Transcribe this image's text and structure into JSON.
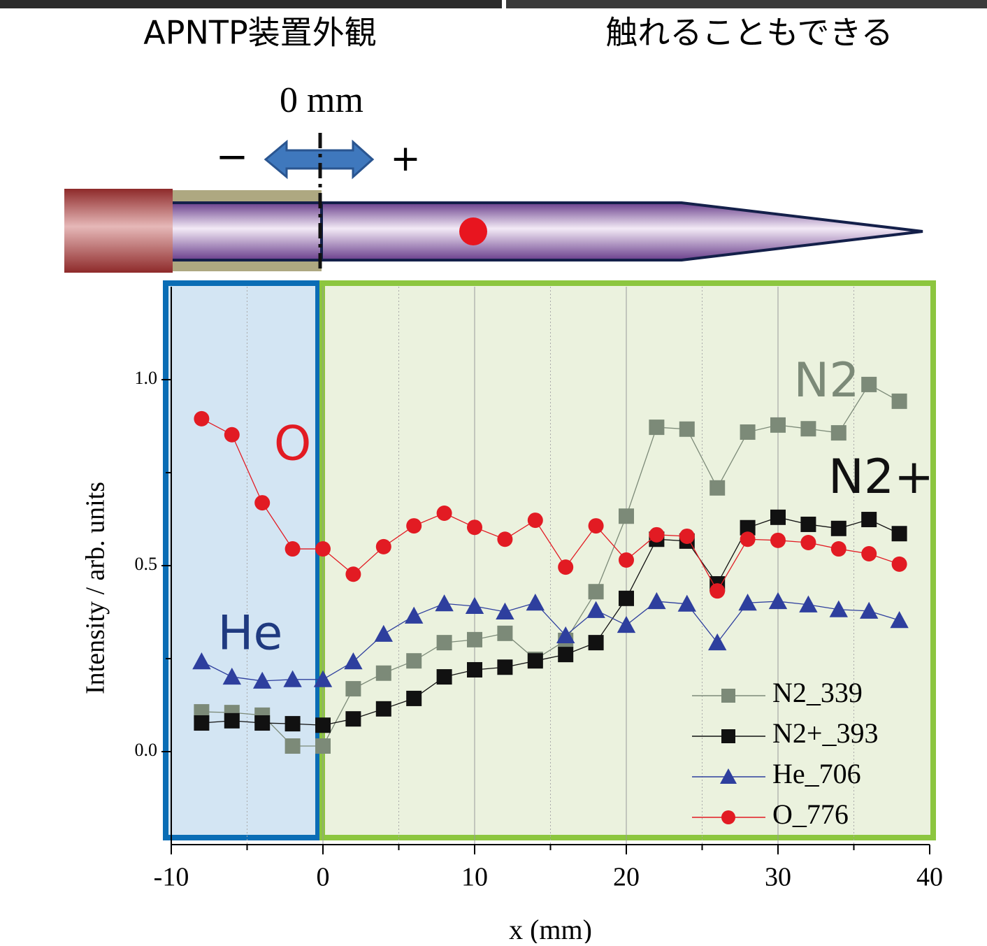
{
  "header": {
    "left_caption": "APNTP装置外観",
    "right_caption": "触れることもできる"
  },
  "diagram": {
    "origin_label": "0 mm",
    "minus": "−",
    "plus": "+"
  },
  "chart_data": {
    "type": "line",
    "x": [
      -8,
      -6,
      -4,
      -2,
      0,
      2,
      4,
      6,
      8,
      10,
      12,
      14,
      16,
      18,
      20,
      22,
      24,
      26,
      28,
      30,
      32,
      34,
      36,
      38
    ],
    "series": [
      {
        "name": "N2_339",
        "color": "#7c8a78",
        "marker": "square",
        "values": [
          0.107,
          0.105,
          0.098,
          0.015,
          0.015,
          0.169,
          0.211,
          0.244,
          0.293,
          0.301,
          0.318,
          0.248,
          0.299,
          0.43,
          0.633,
          0.872,
          0.867,
          0.709,
          0.859,
          0.878,
          0.868,
          0.857,
          0.987,
          0.942
        ]
      },
      {
        "name": "N2+_393",
        "color": "#111111",
        "marker": "square",
        "values": [
          0.077,
          0.083,
          0.077,
          0.075,
          0.071,
          0.088,
          0.115,
          0.143,
          0.201,
          0.22,
          0.227,
          0.244,
          0.261,
          0.293,
          0.412,
          0.571,
          0.566,
          0.451,
          0.602,
          0.63,
          0.611,
          0.6,
          0.624,
          0.586
        ]
      },
      {
        "name": "He_706",
        "color": "#2e3f9e",
        "marker": "triangle",
        "values": [
          0.242,
          0.201,
          0.19,
          0.194,
          0.194,
          0.242,
          0.316,
          0.365,
          0.398,
          0.391,
          0.376,
          0.4,
          0.312,
          0.38,
          0.34,
          0.404,
          0.397,
          0.293,
          0.4,
          0.404,
          0.395,
          0.382,
          0.378,
          0.353
        ]
      },
      {
        "name": "O_776",
        "color": "#e21b23",
        "marker": "circle",
        "values": [
          0.895,
          0.852,
          0.669,
          0.545,
          0.545,
          0.477,
          0.551,
          0.607,
          0.641,
          0.603,
          0.571,
          0.622,
          0.496,
          0.607,
          0.515,
          0.583,
          0.579,
          0.432,
          0.571,
          0.568,
          0.562,
          0.545,
          0.532,
          0.504
        ]
      }
    ],
    "xlabel": "x (mm)",
    "ylabel": "Intensity / arb. units",
    "xlim": [
      -10,
      40
    ],
    "xticks": [
      -10,
      0,
      10,
      20,
      30,
      40
    ],
    "xminorticks": [
      -5,
      5,
      15,
      25,
      35
    ],
    "ylim": [
      -0.25,
      1.25
    ],
    "yticks": [
      {
        "value": 0,
        "label": "0.0"
      },
      {
        "value": 0.5,
        "label": "0.5"
      },
      {
        "value": 1,
        "label": "1.0"
      }
    ],
    "yminorticks": [
      0.25,
      0.75
    ],
    "grid": true,
    "legend": "lower right",
    "annotations": [
      {
        "text": "O",
        "x": -2,
        "y": 0.82,
        "color": "#e21b23"
      },
      {
        "text": "He",
        "x": -4.8,
        "y": 0.31,
        "color": "#1f3a80"
      },
      {
        "text": "N2",
        "x": 33.2,
        "y": 0.99,
        "color": "#7c8a78"
      },
      {
        "text": "N2+",
        "x": 36.8,
        "y": 0.73,
        "color": "#111111"
      }
    ]
  }
}
